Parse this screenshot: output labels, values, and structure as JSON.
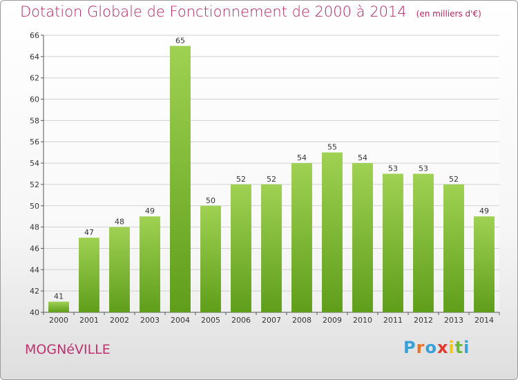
{
  "header": {
    "title": "Dotation Globale de Fonctionnement de 2000 à 2014",
    "unit": "(en milliers d'€)"
  },
  "footer": {
    "town": "MOGNéVILLE",
    "brand": "Proxiti",
    "brand_colors": [
      "#3aa0d8",
      "#e8722a",
      "#3aa0d8",
      "#e23a2e",
      "#f0c419",
      "#6bb83a",
      "#3aa0d8"
    ]
  },
  "chart_data": {
    "type": "bar",
    "title": "Dotation Globale de Fonctionnement de 2000 à 2014",
    "subtitle": "(en milliers d'€)",
    "xlabel": "",
    "ylabel": "",
    "categories": [
      "2000",
      "2001",
      "2002",
      "2003",
      "2004",
      "2005",
      "2006",
      "2007",
      "2008",
      "2009",
      "2010",
      "2011",
      "2012",
      "2013",
      "2014"
    ],
    "values": [
      41,
      47,
      48,
      49,
      65,
      50,
      52,
      52,
      54,
      55,
      54,
      53,
      53,
      52,
      49
    ],
    "ylim": [
      40,
      66
    ],
    "yticks": [
      40,
      42,
      44,
      46,
      48,
      50,
      52,
      54,
      56,
      58,
      60,
      62,
      64,
      66
    ],
    "grid": true,
    "bar_color_top": "#9fd152",
    "bar_color_bottom": "#5f9e1a"
  }
}
